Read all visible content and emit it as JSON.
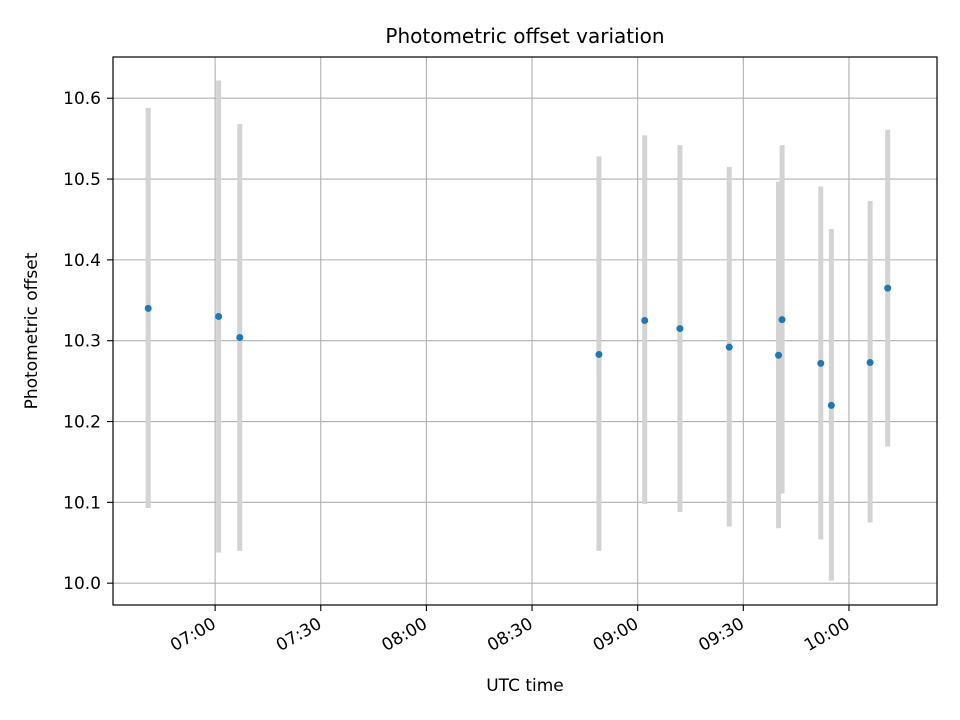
{
  "chart_data": {
    "type": "scatter",
    "title": "Photometric offset variation",
    "xlabel": "UTC time",
    "ylabel": "Photometric offset",
    "xlim": [
      "06:31",
      "10:25"
    ],
    "ylim": [
      9.973,
      10.651
    ],
    "x_ticks": [
      "07:00",
      "07:30",
      "08:00",
      "08:30",
      "09:00",
      "09:30",
      "10:00"
    ],
    "y_ticks": [
      "10.0",
      "10.1",
      "10.2",
      "10.3",
      "10.4",
      "10.5",
      "10.6"
    ],
    "grid": true,
    "legend": "none",
    "points": [
      {
        "x": "06:41",
        "y": 10.34,
        "ylow": 10.093,
        "yhigh": 10.588
      },
      {
        "x": "07:01",
        "y": 10.33,
        "ylow": 10.038,
        "yhigh": 10.622
      },
      {
        "x": "07:07",
        "y": 10.304,
        "ylow": 10.04,
        "yhigh": 10.568
      },
      {
        "x": "08:49",
        "y": 10.283,
        "ylow": 10.04,
        "yhigh": 10.528
      },
      {
        "x": "09:02",
        "y": 10.325,
        "ylow": 10.098,
        "yhigh": 10.554
      },
      {
        "x": "09:12",
        "y": 10.315,
        "ylow": 10.088,
        "yhigh": 10.542
      },
      {
        "x": "09:26",
        "y": 10.292,
        "ylow": 10.07,
        "yhigh": 10.515
      },
      {
        "x": "09:40",
        "y": 10.282,
        "ylow": 10.068,
        "yhigh": 10.497
      },
      {
        "x": "09:41",
        "y": 10.326,
        "ylow": 10.111,
        "yhigh": 10.542
      },
      {
        "x": "09:52",
        "y": 10.272,
        "ylow": 10.054,
        "yhigh": 10.491
      },
      {
        "x": "09:55",
        "y": 10.22,
        "ylow": 10.003,
        "yhigh": 10.438
      },
      {
        "x": "10:06",
        "y": 10.273,
        "ylow": 10.075,
        "yhigh": 10.473
      },
      {
        "x": "10:11",
        "y": 10.365,
        "ylow": 10.169,
        "yhigh": 10.561
      }
    ],
    "colors": {
      "marker": "#1f77b4",
      "errorbar": "#d3d3d3",
      "grid": "#b0b0b0",
      "frame": "#000000"
    }
  }
}
